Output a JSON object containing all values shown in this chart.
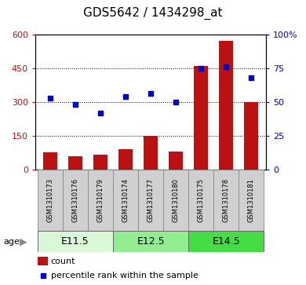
{
  "title": "GDS5642 / 1434298_at",
  "samples": [
    "GSM1310173",
    "GSM1310176",
    "GSM1310179",
    "GSM1310174",
    "GSM1310177",
    "GSM1310180",
    "GSM1310175",
    "GSM1310178",
    "GSM1310181"
  ],
  "counts": [
    75,
    58,
    65,
    90,
    150,
    80,
    460,
    570,
    300
  ],
  "percentiles": [
    53,
    48,
    42,
    54,
    56,
    50,
    75,
    76,
    68
  ],
  "groups": [
    {
      "label": "E11.5",
      "indices": [
        0,
        1,
        2
      ],
      "color": "#d8f8d8"
    },
    {
      "label": "E12.5",
      "indices": [
        3,
        4,
        5
      ],
      "color": "#90ee90"
    },
    {
      "label": "E14.5",
      "indices": [
        6,
        7,
        8
      ],
      "color": "#44dd44"
    }
  ],
  "ylim_left": [
    0,
    600
  ],
  "ylim_right": [
    0,
    100
  ],
  "yticks_left": [
    0,
    150,
    300,
    450,
    600
  ],
  "yticks_right": [
    0,
    25,
    50,
    75,
    100
  ],
  "bar_color": "#bb1111",
  "dot_color": "#0000cc",
  "title_fontsize": 11,
  "tick_fontsize": 8,
  "sample_fontsize": 6,
  "group_fontsize": 9,
  "legend_fontsize": 8
}
